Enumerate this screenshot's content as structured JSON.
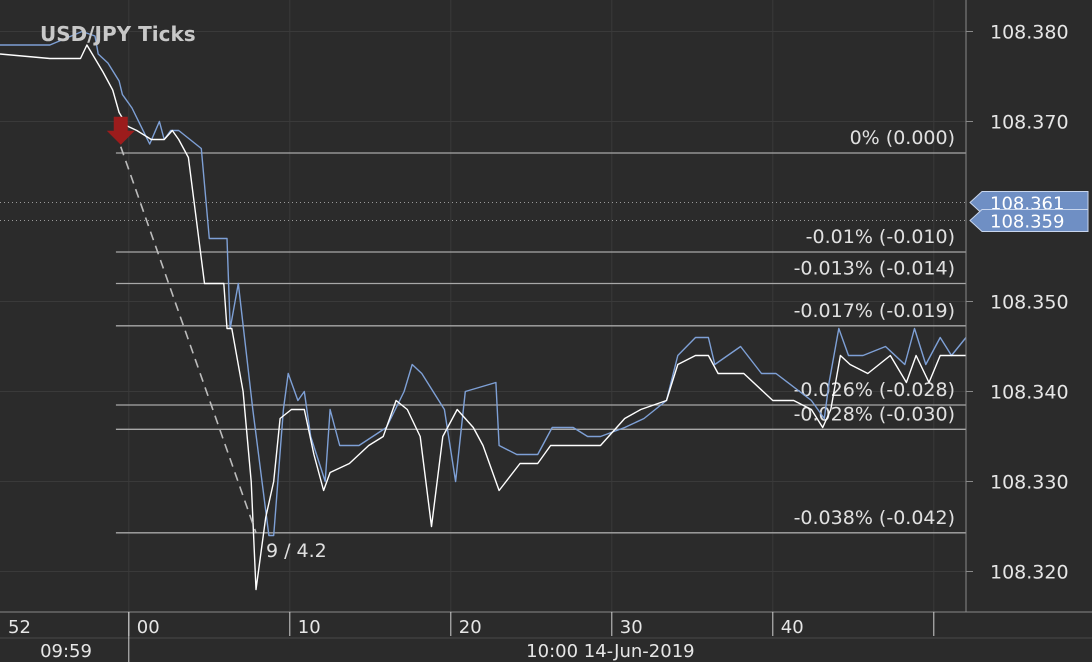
{
  "colors": {
    "background": "#2b2b2b",
    "grid": "#3a3a3a",
    "axis_line": "#8a8a8a",
    "ask_line": "#7ea0d6",
    "bid_line": "#ffffff",
    "level_line": "#a8a8a8",
    "badge_fill": "#6f8fc4",
    "trade_arrow": "#9c1c1c",
    "dashed_line": "#bcbcbc"
  },
  "chart_data": {
    "type": "line",
    "title": "USD/JPY  Ticks",
    "ylim": [
      108.3155,
      108.3835
    ],
    "xlim": [
      -8.0,
      52.0
    ],
    "y_ticks": [
      "108.380",
      "108.370",
      "108.350",
      "108.340",
      "108.330",
      "108.320"
    ],
    "x_ticks_top": [
      {
        "t": -8,
        "label": "52"
      },
      {
        "t": 0,
        "label": "00"
      },
      {
        "t": 10,
        "label": "10"
      },
      {
        "t": 20,
        "label": "20"
      },
      {
        "t": 30,
        "label": "30"
      },
      {
        "t": 40,
        "label": "40"
      },
      {
        "t": 50,
        "label": ""
      }
    ],
    "x_ticks_bottom": [
      {
        "t": -8,
        "label": "09:59"
      },
      {
        "t": 20,
        "label": "10:00 14-Jun-2019"
      }
    ],
    "grid": true,
    "series": [
      {
        "style": "ask",
        "points": [
          [
            -8.0,
            108.3785
          ],
          [
            -4.9,
            108.3785
          ],
          [
            -2.9,
            108.38
          ],
          [
            -2.1,
            108.3795
          ],
          [
            -1.9,
            108.3775
          ],
          [
            -1.3,
            108.3765
          ],
          [
            -0.6,
            108.3745
          ],
          [
            -0.4,
            108.373
          ],
          [
            0.2,
            108.3715
          ],
          [
            1.3,
            108.3675
          ],
          [
            1.9,
            108.37
          ],
          [
            2.2,
            108.368
          ],
          [
            2.6,
            108.369
          ],
          [
            3.1,
            108.369
          ],
          [
            3.8,
            108.368
          ],
          [
            4.5,
            108.367
          ],
          [
            5.0,
            108.357
          ],
          [
            6.1,
            108.357
          ],
          [
            6.3,
            108.347
          ],
          [
            6.8,
            108.352
          ],
          [
            7.7,
            108.338
          ],
          [
            8.7,
            108.324
          ],
          [
            9.0,
            108.324
          ],
          [
            9.6,
            108.338
          ],
          [
            9.9,
            108.342
          ],
          [
            10.5,
            108.339
          ],
          [
            10.9,
            108.34
          ],
          [
            11.3,
            108.335
          ],
          [
            12.2,
            108.33
          ],
          [
            12.5,
            108.338
          ],
          [
            13.1,
            108.334
          ],
          [
            14.3,
            108.334
          ],
          [
            16.0,
            108.336
          ],
          [
            17.1,
            108.34
          ],
          [
            17.6,
            108.343
          ],
          [
            18.2,
            108.342
          ],
          [
            19.6,
            108.338
          ],
          [
            20.3,
            108.33
          ],
          [
            20.9,
            108.34
          ],
          [
            22.8,
            108.341
          ],
          [
            23.0,
            108.334
          ],
          [
            24.1,
            108.333
          ],
          [
            25.4,
            108.333
          ],
          [
            26.3,
            108.336
          ],
          [
            27.6,
            108.336
          ],
          [
            28.5,
            108.335
          ],
          [
            29.3,
            108.335
          ],
          [
            30.8,
            108.336
          ],
          [
            32.0,
            108.337
          ],
          [
            33.4,
            108.339
          ],
          [
            34.1,
            108.344
          ],
          [
            35.2,
            108.346
          ],
          [
            36.0,
            108.346
          ],
          [
            36.4,
            108.343
          ],
          [
            38.0,
            108.345
          ],
          [
            39.3,
            108.342
          ],
          [
            40.2,
            108.342
          ],
          [
            42.4,
            108.339
          ],
          [
            43.2,
            108.337
          ],
          [
            43.5,
            108.341
          ],
          [
            44.1,
            108.347
          ],
          [
            44.7,
            108.344
          ],
          [
            45.6,
            108.344
          ],
          [
            47.0,
            108.345
          ],
          [
            48.2,
            108.343
          ],
          [
            48.8,
            108.347
          ],
          [
            49.5,
            108.343
          ],
          [
            50.4,
            108.346
          ],
          [
            51.1,
            108.344
          ],
          [
            52.0,
            108.346
          ]
        ]
      },
      {
        "style": "bid",
        "points": [
          [
            -8.0,
            108.3775
          ],
          [
            -4.9,
            108.377
          ],
          [
            -3.0,
            108.377
          ],
          [
            -2.6,
            108.3785
          ],
          [
            -1.6,
            108.3755
          ],
          [
            -1.0,
            108.3735
          ],
          [
            -0.6,
            108.371
          ],
          [
            -0.1,
            108.3695
          ],
          [
            0.5,
            108.369
          ],
          [
            1.4,
            108.368
          ],
          [
            2.2,
            108.368
          ],
          [
            2.7,
            108.369
          ],
          [
            3.1,
            108.368
          ],
          [
            3.7,
            108.366
          ],
          [
            4.7,
            108.352
          ],
          [
            5.9,
            108.352
          ],
          [
            6.1,
            108.347
          ],
          [
            6.4,
            108.347
          ],
          [
            7.1,
            108.34
          ],
          [
            7.6,
            108.33
          ],
          [
            7.9,
            108.318
          ],
          [
            8.5,
            108.326
          ],
          [
            9.0,
            108.33
          ],
          [
            9.4,
            108.337
          ],
          [
            10.1,
            108.338
          ],
          [
            10.9,
            108.338
          ],
          [
            11.5,
            108.333
          ],
          [
            12.1,
            108.329
          ],
          [
            12.5,
            108.331
          ],
          [
            13.7,
            108.332
          ],
          [
            14.9,
            108.334
          ],
          [
            15.8,
            108.335
          ],
          [
            16.6,
            108.339
          ],
          [
            17.3,
            108.338
          ],
          [
            18.1,
            108.335
          ],
          [
            18.8,
            108.325
          ],
          [
            19.5,
            108.335
          ],
          [
            20.4,
            108.338
          ],
          [
            21.4,
            108.336
          ],
          [
            22.0,
            108.334
          ],
          [
            23.0,
            108.329
          ],
          [
            24.3,
            108.332
          ],
          [
            25.4,
            108.332
          ],
          [
            26.2,
            108.334
          ],
          [
            27.5,
            108.334
          ],
          [
            29.3,
            108.334
          ],
          [
            30.8,
            108.337
          ],
          [
            31.8,
            108.338
          ],
          [
            33.4,
            108.339
          ],
          [
            34.1,
            108.343
          ],
          [
            35.2,
            108.344
          ],
          [
            36.0,
            108.344
          ],
          [
            36.6,
            108.342
          ],
          [
            38.2,
            108.342
          ],
          [
            40.0,
            108.339
          ],
          [
            41.3,
            108.339
          ],
          [
            42.4,
            108.338
          ],
          [
            43.1,
            108.336
          ],
          [
            43.6,
            108.338
          ],
          [
            44.2,
            108.344
          ],
          [
            44.8,
            108.343
          ],
          [
            45.9,
            108.342
          ],
          [
            47.3,
            108.344
          ],
          [
            48.3,
            108.341
          ],
          [
            48.9,
            108.344
          ],
          [
            49.7,
            108.341
          ],
          [
            50.4,
            108.344
          ],
          [
            51.1,
            108.344
          ],
          [
            52.0,
            108.344
          ]
        ]
      }
    ],
    "current_prices": [
      {
        "value": 108.361,
        "label": "108.361"
      },
      {
        "value": 108.359,
        "label": "108.359"
      }
    ],
    "levels": [
      {
        "value": 108.3665,
        "label": "0% (0.000)"
      },
      {
        "value": 108.3555,
        "label": "-0.01% (-0.010)"
      },
      {
        "value": 108.352,
        "label": "-0.013% (-0.014)"
      },
      {
        "value": 108.3473,
        "label": "-0.017% (-0.019)"
      },
      {
        "value": 108.3385,
        "label": "-0.026% (-0.028)"
      },
      {
        "value": 108.3358,
        "label": "-0.028% (-0.030)"
      },
      {
        "value": 108.3243,
        "label": "-0.038% (-0.042)"
      }
    ],
    "levels_x_start": -0.8,
    "trade_arrow": {
      "t": -0.5,
      "value": 108.3672
    },
    "measure_line": {
      "from": [
        -0.5,
        108.3672
      ],
      "to": [
        7.9,
        108.3243
      ],
      "label": "9 / 4.2"
    }
  }
}
